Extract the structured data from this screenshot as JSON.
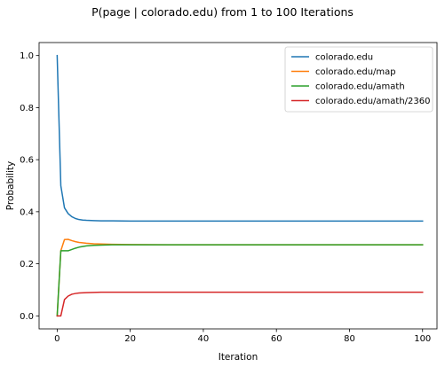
{
  "chart_data": {
    "type": "line",
    "title": "P(page | colorado.edu) from 1 to 100 Iterations",
    "xlabel": "Iteration",
    "ylabel": "Probability",
    "xlim": [
      -4.95,
      103.95
    ],
    "ylim": [
      -0.05,
      1.05
    ],
    "xticks": [
      0,
      20,
      40,
      60,
      80,
      100
    ],
    "yticks": [
      0.0,
      0.2,
      0.4,
      0.6,
      0.8,
      1.0
    ],
    "xtick_labels": [
      "0",
      "20",
      "40",
      "60",
      "80",
      "100"
    ],
    "ytick_labels": [
      "0.0",
      "0.2",
      "0.4",
      "0.6",
      "0.8",
      "1.0"
    ],
    "grid": false,
    "legend_position": "top-right",
    "series": [
      {
        "name": "colorado.edu",
        "color": "#1f77b4",
        "x": [
          0,
          1,
          2,
          3,
          4,
          5,
          6,
          7,
          8,
          10,
          12,
          15,
          20,
          30,
          40,
          60,
          80,
          100
        ],
        "y": [
          1.0,
          0.5,
          0.415,
          0.393,
          0.381,
          0.374,
          0.37,
          0.368,
          0.367,
          0.366,
          0.365,
          0.365,
          0.364,
          0.364,
          0.364,
          0.364,
          0.364,
          0.364
        ]
      },
      {
        "name": "colorado.edu/map",
        "color": "#ff7f0e",
        "x": [
          0,
          1,
          2,
          3,
          4,
          5,
          6,
          8,
          10,
          12,
          15,
          20,
          30,
          40,
          60,
          80,
          100
        ],
        "y": [
          0.0,
          0.25,
          0.293,
          0.294,
          0.289,
          0.285,
          0.282,
          0.279,
          0.277,
          0.276,
          0.275,
          0.274,
          0.273,
          0.273,
          0.273,
          0.273,
          0.273
        ]
      },
      {
        "name": "colorado.edu/amath",
        "color": "#2ca02c",
        "x": [
          0,
          1,
          2,
          3,
          4,
          5,
          6,
          8,
          10,
          12,
          15,
          20,
          30,
          40,
          60,
          80,
          100
        ],
        "y": [
          0.0,
          0.25,
          0.25,
          0.25,
          0.255,
          0.26,
          0.264,
          0.269,
          0.271,
          0.272,
          0.273,
          0.273,
          0.273,
          0.273,
          0.273,
          0.273,
          0.273
        ]
      },
      {
        "name": "colorado.edu/amath/2360",
        "color": "#d62728",
        "x": [
          0,
          1,
          2,
          3,
          4,
          5,
          6,
          8,
          10,
          12,
          15,
          20,
          30,
          40,
          60,
          80,
          100
        ],
        "y": [
          0.0,
          0.0,
          0.0625,
          0.076,
          0.083,
          0.086,
          0.088,
          0.089,
          0.09,
          0.091,
          0.091,
          0.091,
          0.091,
          0.091,
          0.091,
          0.091,
          0.091
        ]
      }
    ]
  }
}
